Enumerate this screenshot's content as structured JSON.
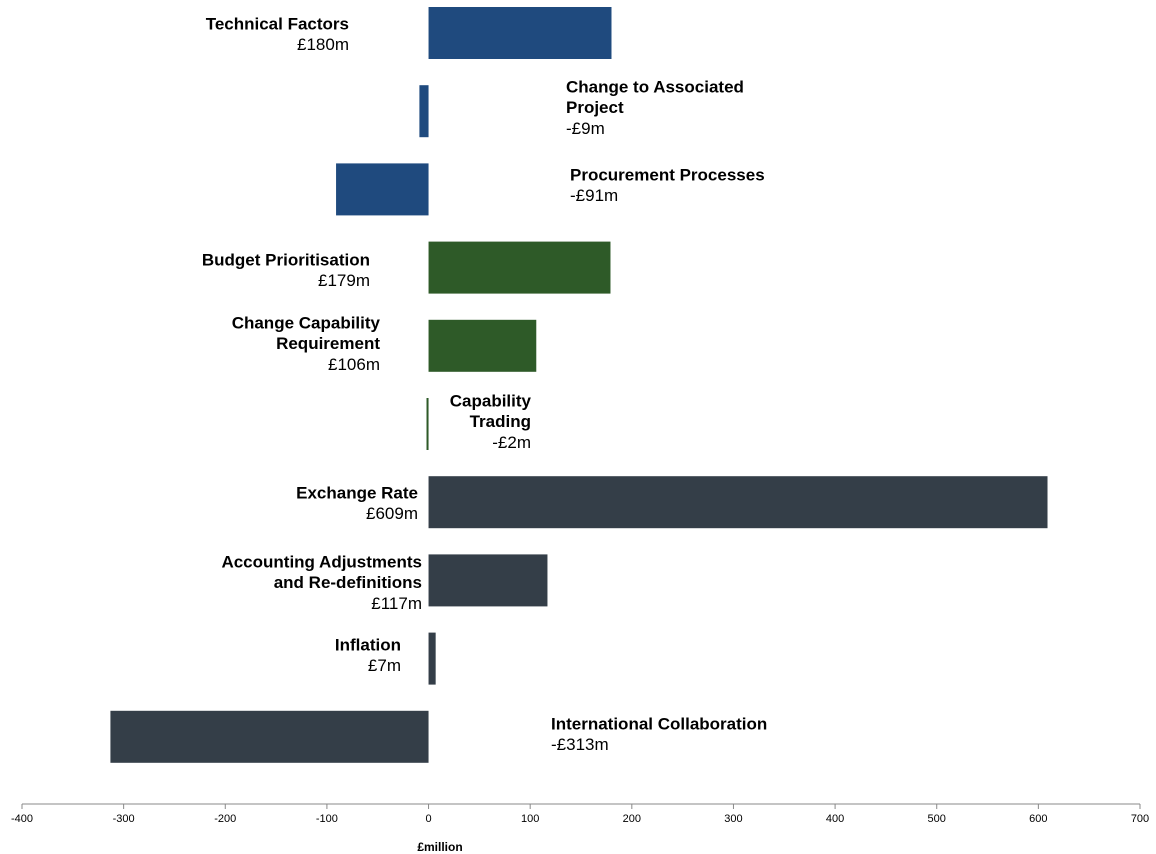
{
  "chart_data": {
    "type": "barh",
    "categories": [
      [
        "Technical Factors"
      ],
      [
        "Change to Associated",
        "Project"
      ],
      [
        "Procurement Processes"
      ],
      [
        "Budget Prioritisation"
      ],
      [
        "Change Capability",
        "Requirement"
      ],
      [
        "Capability",
        "Trading"
      ],
      [
        "Exchange Rate"
      ],
      [
        "Accounting Adjustments",
        "and Re-definitions"
      ],
      [
        "Inflation"
      ],
      [
        "International Collaboration"
      ]
    ],
    "values": [
      180,
      -9,
      -91,
      179,
      106,
      -2,
      609,
      117,
      7,
      -313
    ],
    "value_labels": [
      "£180m",
      "-£9m",
      "-£91m",
      "£179m",
      "£106m",
      "-£2m",
      "£609m",
      "£117m",
      "£7m",
      "-£313m"
    ],
    "colors": [
      "#1f4a7e",
      "#1f4a7e",
      "#1f4a7e",
      "#2e5a28",
      "#2e5a28",
      "#2e5a28",
      "#343e48",
      "#343e48",
      "#343e48",
      "#343e48"
    ],
    "xlim": [
      -400,
      700
    ],
    "xticks": [
      -400,
      -300,
      -200,
      -100,
      0,
      100,
      200,
      300,
      400,
      500,
      600,
      700
    ],
    "xlabel": "£million"
  }
}
